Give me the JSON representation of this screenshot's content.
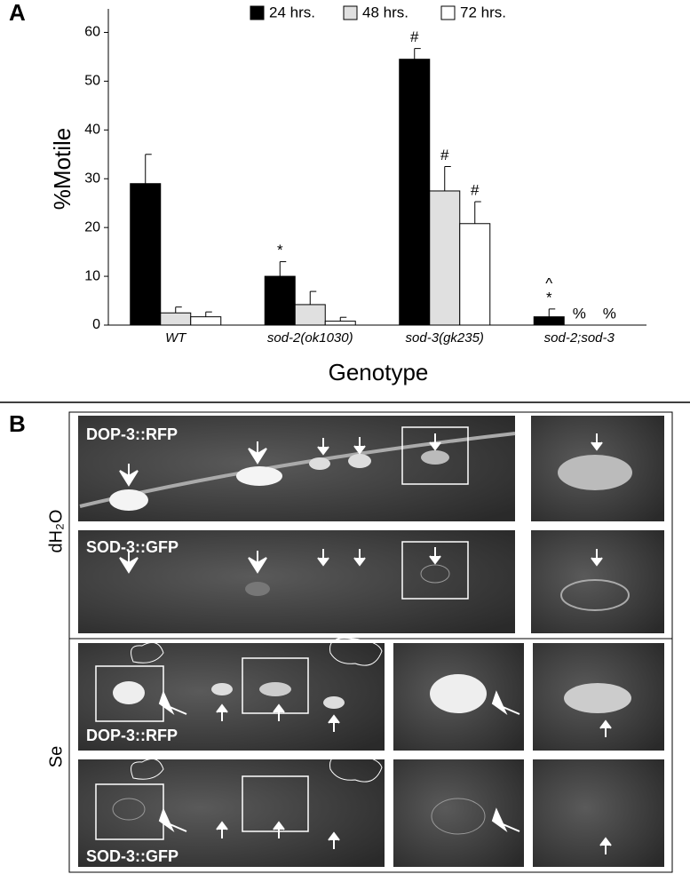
{
  "chart_data": {
    "type": "bar",
    "panel": "A",
    "y_label": "%Motile",
    "x_label": "Genotype",
    "categories": [
      "WT",
      "sod-2(ok1030)",
      "sod-3(gk235)",
      "sod-2;sod-3"
    ],
    "series": [
      {
        "name": "24 hrs.",
        "color": "#000000",
        "values": [
          29,
          10,
          54.5,
          1.7
        ],
        "errors": [
          6,
          3,
          2.2,
          1.6
        ],
        "markers": [
          null,
          [
            "*"
          ],
          [
            "#"
          ],
          [
            "^",
            "*"
          ]
        ]
      },
      {
        "name": "48 hrs.",
        "color": "#e0e0e0",
        "values": [
          2.5,
          4.2,
          27.5,
          0
        ],
        "errors": [
          1.2,
          2.7,
          5,
          null
        ],
        "markers": [
          null,
          null,
          [
            "#"
          ],
          [
            "%"
          ]
        ]
      },
      {
        "name": "72 hrs.",
        "color": "#ffffff",
        "values": [
          1.7,
          0.8,
          20.8,
          0
        ],
        "errors": [
          1,
          0.8,
          4.5,
          null
        ],
        "markers": [
          null,
          null,
          [
            "#"
          ],
          [
            "%"
          ]
        ]
      }
    ],
    "ylim": [
      0,
      63
    ],
    "yticks": [
      0,
      10,
      20,
      30,
      40,
      50,
      60
    ],
    "grid": false
  },
  "panel_b": {
    "label": "B",
    "row_labels": [
      "dH₂O",
      "Se"
    ],
    "image_labels": [
      "DOP-3::RFP",
      "SOD-3::GFP",
      "DOP-3::RFP",
      "SOD-3::GFP"
    ]
  }
}
